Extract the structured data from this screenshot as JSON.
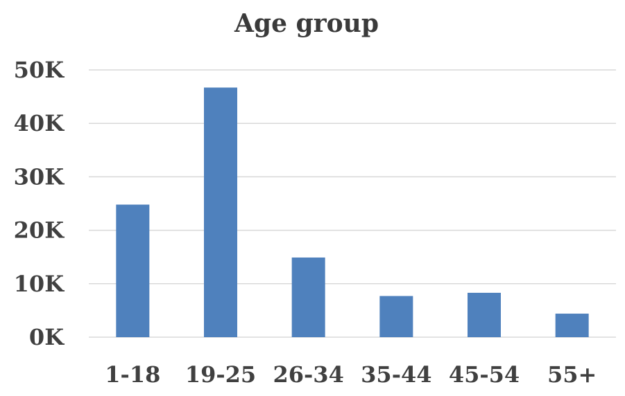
{
  "chart_data": {
    "type": "bar",
    "title": "Age group",
    "xlabel": "",
    "ylabel": "",
    "categories": [
      "1-18",
      "19-25",
      "26-34",
      "35-44",
      "45-54",
      "55+"
    ],
    "values": [
      24800,
      46700,
      14900,
      7700,
      8300,
      4400
    ],
    "ylim": [
      0,
      50000
    ],
    "yticks": [
      0,
      10000,
      20000,
      30000,
      40000,
      50000
    ],
    "ytick_labels": [
      "0K",
      "10K",
      "20K",
      "30K",
      "40K",
      "50K"
    ],
    "grid": true,
    "legend": "none",
    "bar_color": "#4f81bd",
    "grid_color": "#d9d9d9",
    "text_color": "#404040"
  }
}
